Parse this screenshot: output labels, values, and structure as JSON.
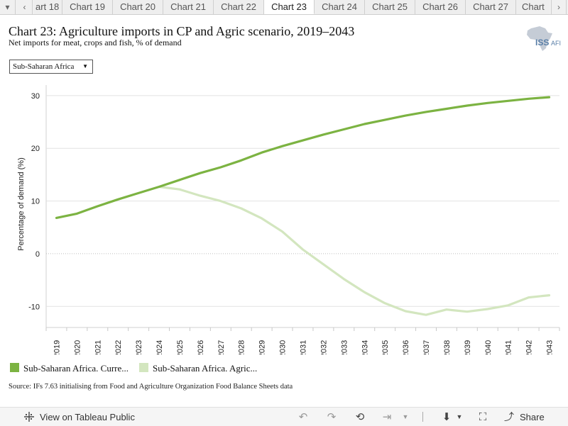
{
  "tabs": {
    "items": [
      "art 18",
      "Chart 19",
      "Chart 20",
      "Chart 21",
      "Chart 22",
      "Chart 23",
      "Chart 24",
      "Chart 25",
      "Chart 26",
      "Chart 27",
      "Chart"
    ],
    "active_index": 5
  },
  "header": {
    "title": "Chart 23: Agriculture imports in CP and Agric scenario, 2019–2043",
    "subtitle": "Net imports for meat, crops and fish, % of demand",
    "logo_text": "ISS",
    "logo_suffix": "AFI"
  },
  "filter": {
    "selected": "Sub-Saharan Africa"
  },
  "source_note": "Source: IFs 7.63 initialising from Food and Agriculture Organization Food Balance Sheets data",
  "footer": {
    "view_label": "View on Tableau Public",
    "share_label": "Share"
  },
  "colors": {
    "current_path": "#7cb342",
    "agric": "#d3e6bf"
  },
  "chart_data": {
    "type": "line",
    "ylabel": "Percentage of demand (%)",
    "ylim": [
      -14,
      32
    ],
    "yticks": [
      30,
      20,
      10,
      0,
      -10
    ],
    "x": [
      "2019",
      "2020",
      "2021",
      "2022",
      "2023",
      "2024",
      "2025",
      "2026",
      "2027",
      "2028",
      "2029",
      "2030",
      "2031",
      "2032",
      "2033",
      "2034",
      "2035",
      "2036",
      "2037",
      "2038",
      "2039",
      "2040",
      "2041",
      "2042",
      "2043"
    ],
    "series": [
      {
        "name": "Sub-Saharan Africa. Curre...",
        "color": "#7cb342",
        "values": [
          6.8,
          7.6,
          9.0,
          10.3,
          11.5,
          12.7,
          14.0,
          15.3,
          16.4,
          17.7,
          19.2,
          20.4,
          21.5,
          22.6,
          23.6,
          24.6,
          25.4,
          26.2,
          26.9,
          27.5,
          28.1,
          28.6,
          29.0,
          29.4,
          29.7
        ]
      },
      {
        "name": "Sub-Saharan Africa. Agric...",
        "color": "#d3e6bf",
        "values": [
          null,
          null,
          null,
          null,
          null,
          12.7,
          12.2,
          11.0,
          10.0,
          8.6,
          6.7,
          4.2,
          0.8,
          -2.0,
          -4.8,
          -7.3,
          -9.4,
          -10.9,
          -11.6,
          -10.6,
          -11.0,
          -10.5,
          -9.8,
          -8.3,
          -7.9
        ]
      }
    ]
  }
}
